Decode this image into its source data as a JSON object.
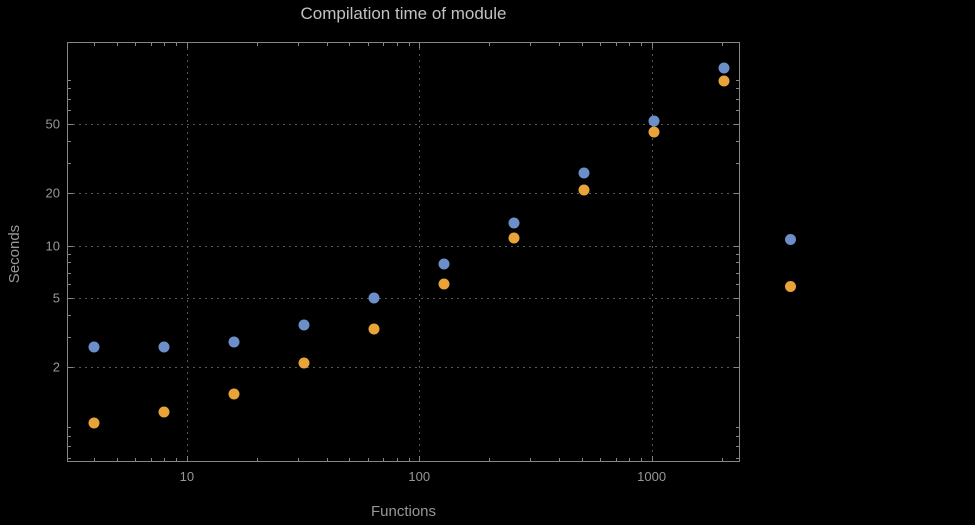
{
  "page": {
    "background": "#000000",
    "frame_color": "#848484",
    "grid_color": "#585858",
    "text_color": "#979797",
    "title_color": "#c2c2c2"
  },
  "chart_data": {
    "type": "scatter",
    "title": "Compilation time of module",
    "xlabel": "Functions",
    "ylabel": "Seconds",
    "x_scale": "log",
    "y_scale": "log",
    "xlim": [
      3.05,
      2400
    ],
    "ylim": [
      0.57,
      148
    ],
    "x_ticks": [
      10,
      100,
      1000
    ],
    "y_ticks": [
      2,
      5,
      10,
      20,
      50
    ],
    "grid": "dotted",
    "legend_position": "right-outside",
    "x": [
      4,
      8,
      16,
      32,
      64,
      128,
      256,
      512,
      1024,
      2048
    ],
    "series": [
      {
        "name": "series-1-blue",
        "color": "#6d8fc9",
        "marker": "circle",
        "values": [
          2.6,
          2.6,
          2.8,
          3.5,
          5.0,
          7.8,
          13.5,
          26,
          52,
          105
        ]
      },
      {
        "name": "series-2-orange",
        "color": "#e9a33b",
        "marker": "circle",
        "values": [
          0.95,
          1.1,
          1.4,
          2.1,
          3.3,
          6.0,
          11,
          21,
          45,
          88
        ]
      }
    ]
  }
}
